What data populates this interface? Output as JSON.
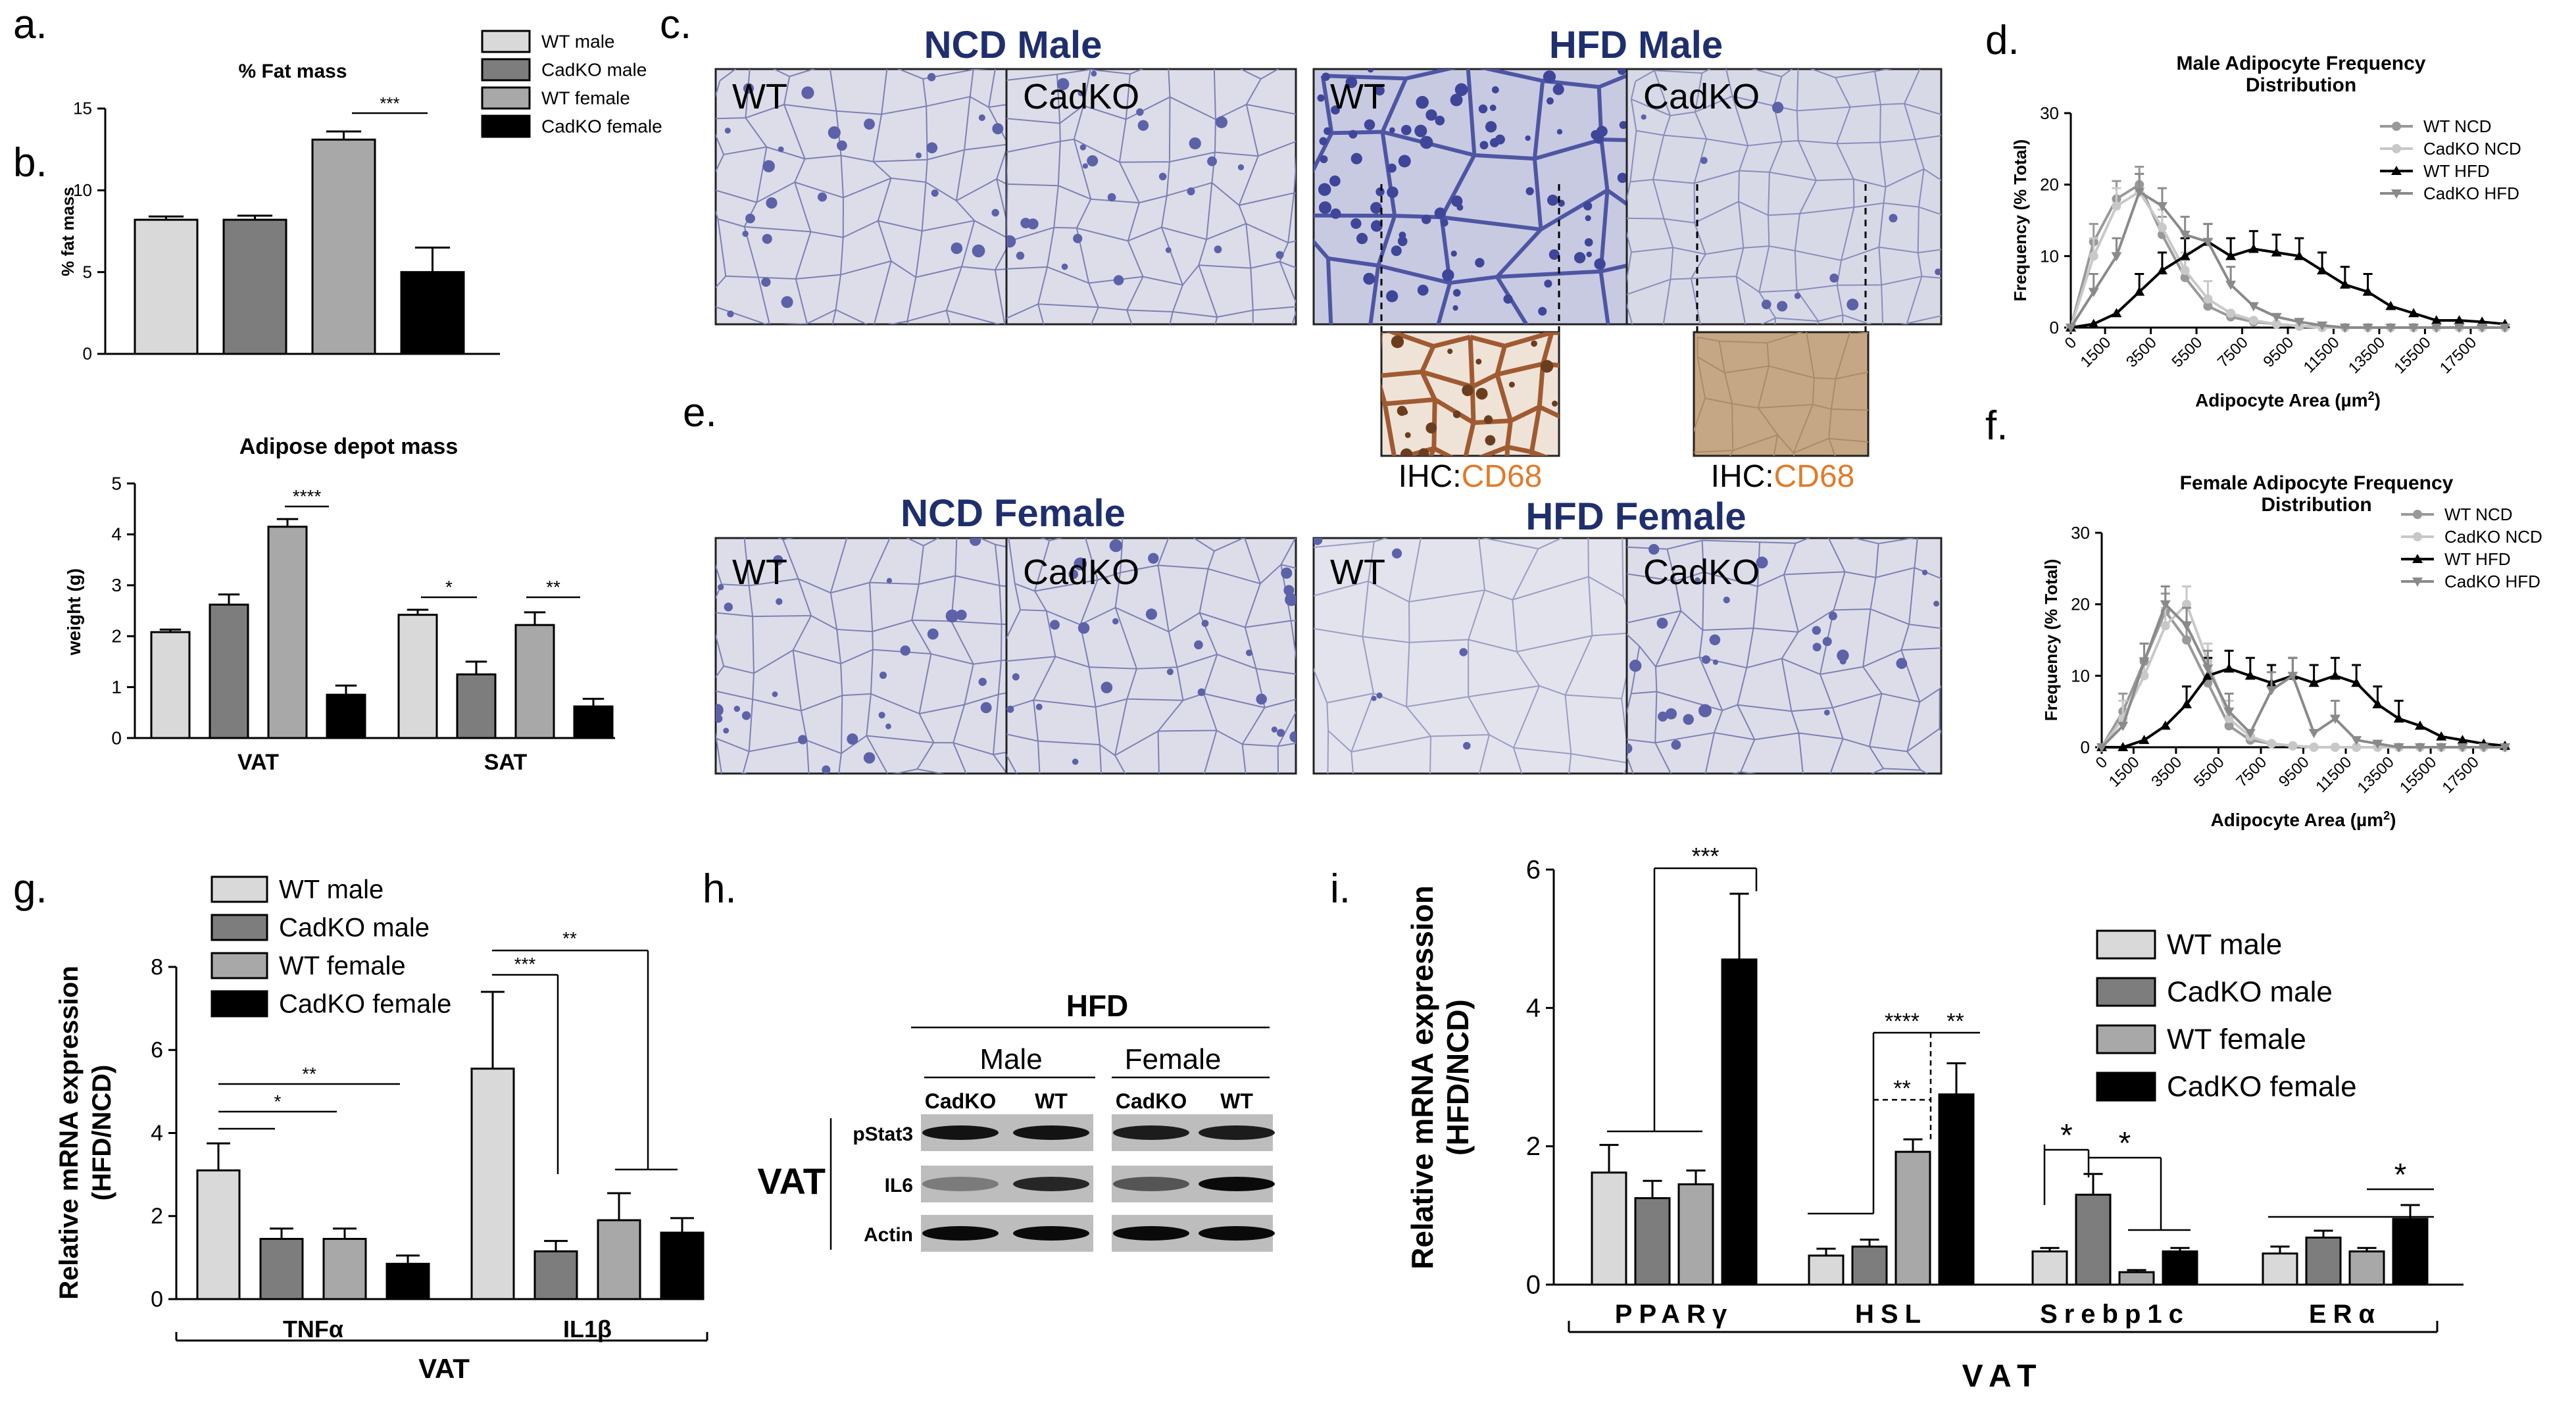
{
  "colors": {
    "wt_male": "#d9d9d9",
    "cadko_male": "#7d7d7d",
    "wt_female": "#a8a8a8",
    "cadko_female": "#000000",
    "title_blue": "#1f2f6e",
    "cd68_orange": "#e07b2a",
    "tissue_bg": "#dcdde9",
    "tissue_line": "#7d80b3",
    "wt_ncd_line": "#999999",
    "cadko_ncd_line": "#c8c8c8",
    "wt_hfd_line": "#000000",
    "cadko_hfd_line": "#8a8a8a"
  },
  "panel_letters": {
    "a": "a.",
    "b": "b.",
    "c": "c.",
    "d": "d.",
    "e": "e.",
    "f": "f.",
    "g": "g.",
    "h": "h.",
    "i": "i."
  },
  "chart_data": [
    {
      "id": "a",
      "type": "bar",
      "title": "% Fat mass",
      "ylabel": "% fat mass",
      "ylim": [
        0,
        15
      ],
      "yticks": [
        "0",
        "5",
        "10",
        "15"
      ],
      "series": [
        {
          "name": "WT male",
          "values": [
            8.2
          ],
          "error": [
            0.2
          ]
        },
        {
          "name": "CadKO male",
          "values": [
            8.2
          ],
          "error": [
            0.25
          ]
        },
        {
          "name": "WT female",
          "values": [
            13.1
          ],
          "error": [
            0.5
          ]
        },
        {
          "name": "CadKO female",
          "values": [
            5.0
          ],
          "error": [
            1.5
          ]
        }
      ],
      "legend": [
        "WT male",
        "CadKO male",
        "WT female",
        "CadKO female"
      ],
      "legend_position": "top-right",
      "significance": [
        "***"
      ]
    },
    {
      "id": "b",
      "type": "bar",
      "title": "Adipose depot mass",
      "ylabel": "weight (g)",
      "ylim": [
        0,
        5
      ],
      "yticks": [
        "0",
        "1",
        "2",
        "3",
        "4",
        "5"
      ],
      "categories": [
        "VAT",
        "SAT"
      ],
      "series": [
        {
          "name": "WT male",
          "values": [
            2.08,
            2.42
          ],
          "error": [
            0.05,
            0.1
          ]
        },
        {
          "name": "CadKO male",
          "values": [
            2.62,
            1.25
          ],
          "error": [
            0.2,
            0.25
          ]
        },
        {
          "name": "WT female",
          "values": [
            4.15,
            2.22
          ],
          "error": [
            0.15,
            0.25
          ]
        },
        {
          "name": "CadKO female",
          "values": [
            0.85,
            0.62
          ],
          "error": [
            0.18,
            0.15
          ]
        }
      ],
      "significance": [
        "****",
        "*",
        "**"
      ]
    },
    {
      "id": "d",
      "type": "line",
      "title_line1": "Male Adipocyte Frequency",
      "title_line2": "Distribution",
      "xlabel": "Adipocyte Area (µm",
      "xlabel_sup": "2",
      "xlabel_close": ")",
      "ylabel": "Frequency (% Total)",
      "ylim": [
        0,
        30
      ],
      "yticks": [
        "0",
        "10",
        "20",
        "30"
      ],
      "xticks": [
        "0",
        "1500",
        "3500",
        "5500",
        "7500",
        "9500",
        "11500",
        "13500",
        "15500",
        "17500"
      ],
      "x": [
        0,
        1000,
        2000,
        3000,
        4000,
        5000,
        6000,
        7000,
        8000,
        9000,
        10000,
        11000,
        12000,
        13000,
        14000,
        15000,
        16000,
        17000,
        18000,
        19000
      ],
      "series": [
        {
          "name": "WT NCD",
          "values": [
            0,
            12,
            18,
            20,
            13,
            7,
            3,
            1.5,
            0.8,
            0.5,
            0.2,
            0.1,
            0,
            0,
            0,
            0,
            0,
            0,
            0,
            0
          ]
        },
        {
          "name": "CadKO NCD",
          "values": [
            0,
            10,
            17,
            19,
            14,
            8,
            4,
            2,
            1,
            0.5,
            0.2,
            0,
            0,
            0,
            0,
            0,
            0,
            0,
            0,
            0
          ]
        },
        {
          "name": "WT HFD",
          "values": [
            0,
            0.5,
            2,
            5,
            8,
            10,
            12,
            10,
            11,
            10.5,
            10,
            8,
            6,
            5,
            3,
            2,
            1,
            1,
            0.8,
            0.5
          ]
        },
        {
          "name": "CadKO HFD",
          "values": [
            0,
            5,
            10,
            19,
            17,
            13,
            12,
            6,
            3,
            1.5,
            0.8,
            0.3,
            0,
            0,
            0,
            0,
            0,
            0,
            0,
            0
          ]
        }
      ],
      "legend_position": "top-right"
    },
    {
      "id": "f",
      "type": "line",
      "title_line1": "Female Adipocyte Frequency",
      "title_line2": "Distribution",
      "xlabel": "Adipocyte Area (µm",
      "xlabel_sup": "2",
      "xlabel_close": ")",
      "ylabel": "Frequency (% Total)",
      "ylim": [
        0,
        30
      ],
      "yticks": [
        "0",
        "10",
        "20",
        "30"
      ],
      "xticks": [
        "0",
        "1500",
        "3500",
        "5500",
        "7500",
        "9500",
        "11500",
        "13500",
        "15500",
        "17500"
      ],
      "x": [
        0,
        1000,
        2000,
        3000,
        4000,
        5000,
        6000,
        7000,
        8000,
        9000,
        10000,
        11000,
        12000,
        13000,
        14000,
        15000,
        16000,
        17000,
        18000,
        19000
      ],
      "series": [
        {
          "name": "WT NCD",
          "values": [
            0,
            5,
            12,
            19,
            15,
            9,
            3,
            1,
            0.5,
            0.2,
            0,
            0,
            0,
            0,
            0,
            0,
            0,
            0,
            0,
            0
          ]
        },
        {
          "name": "CadKO NCD",
          "values": [
            0,
            4,
            10,
            17,
            20,
            12,
            4,
            1.5,
            0.5,
            0.2,
            0,
            0,
            0,
            0,
            0,
            0,
            0,
            0,
            0,
            0
          ]
        },
        {
          "name": "WT HFD",
          "values": [
            0,
            0,
            1,
            3,
            6,
            10,
            11,
            10,
            9,
            10,
            9,
            10,
            9,
            6,
            4,
            3,
            1.5,
            1,
            0.5,
            0.2
          ]
        },
        {
          "name": "CadKO HFD",
          "values": [
            0,
            3,
            12,
            20,
            17,
            11,
            5,
            2,
            8,
            10,
            2,
            4,
            1,
            0.5,
            0,
            0,
            0,
            0,
            0,
            0
          ]
        }
      ],
      "legend_position": "top-right"
    },
    {
      "id": "g",
      "type": "bar",
      "ylabel_line1": "Relative mRNA expression",
      "ylabel_line2": "(HFD/NCD)",
      "ylim": [
        0,
        8
      ],
      "yticks": [
        "0",
        "2",
        "4",
        "6",
        "8"
      ],
      "categories": [
        "TNFα",
        "IL1β"
      ],
      "group_label": "VAT",
      "series": [
        {
          "name": "WT male",
          "values": [
            3.1,
            5.55
          ],
          "error": [
            0.65,
            1.85
          ]
        },
        {
          "name": "CadKO male",
          "values": [
            1.45,
            1.15
          ],
          "error": [
            0.25,
            0.25
          ]
        },
        {
          "name": "WT female",
          "values": [
            1.45,
            1.9
          ],
          "error": [
            0.25,
            0.65
          ]
        },
        {
          "name": "CadKO female",
          "values": [
            0.85,
            1.6
          ],
          "error": [
            0.2,
            0.35
          ]
        }
      ],
      "legend": [
        "WT male",
        "CadKO male",
        "WT female",
        "CadKO female"
      ],
      "significance": [
        "**",
        "*",
        "***",
        "**"
      ]
    },
    {
      "id": "i",
      "type": "bar",
      "ylabel_line1": "Relative mRNA expression",
      "ylabel_line2": "(HFD/NCD)",
      "ylim": [
        0,
        6
      ],
      "yticks": [
        "0",
        "2",
        "4",
        "6"
      ],
      "categories": [
        "PPARγ",
        "HSL",
        "Srebp1c",
        "ERα"
      ],
      "group_label": "VAT",
      "series": [
        {
          "name": "WT male",
          "values": [
            1.62,
            0.42,
            0.48,
            0.45
          ],
          "error": [
            0.4,
            0.1,
            0.05,
            0.1
          ]
        },
        {
          "name": "CadKO male",
          "values": [
            1.25,
            0.55,
            1.3,
            0.68
          ],
          "error": [
            0.25,
            0.1,
            0.3,
            0.1
          ]
        },
        {
          "name": "WT female",
          "values": [
            1.45,
            1.92,
            0.18,
            0.48
          ],
          "error": [
            0.2,
            0.18,
            0.03,
            0.05
          ]
        },
        {
          "name": "CadKO female",
          "values": [
            4.7,
            2.75,
            0.48,
            0.95
          ],
          "error": [
            0.95,
            0.45,
            0.05,
            0.2
          ]
        }
      ],
      "legend": [
        "WT male",
        "CadKO male",
        "WT female",
        "CadKO female"
      ],
      "significance": [
        "***",
        "****",
        "**",
        "**",
        "*",
        "*",
        "*"
      ]
    }
  ],
  "histology": {
    "c": {
      "ncd_title": "NCD Male",
      "hfd_title": "HFD Male",
      "labels": [
        "WT",
        "CadKO",
        "WT",
        "CadKO"
      ],
      "ihc_prefix": "IHC:",
      "ihc_marker": "CD68"
    },
    "e": {
      "ncd_title": "NCD Female",
      "hfd_title": "HFD Female",
      "labels": [
        "WT",
        "CadKO",
        "WT",
        "CadKO"
      ]
    }
  },
  "western": {
    "header": "HFD",
    "male": "Male",
    "female": "Female",
    "lanes": [
      "CadKO",
      "WT",
      "CadKO",
      "WT"
    ],
    "rows": [
      "pStat3",
      "IL6",
      "Actin"
    ],
    "tissue": "VAT"
  }
}
